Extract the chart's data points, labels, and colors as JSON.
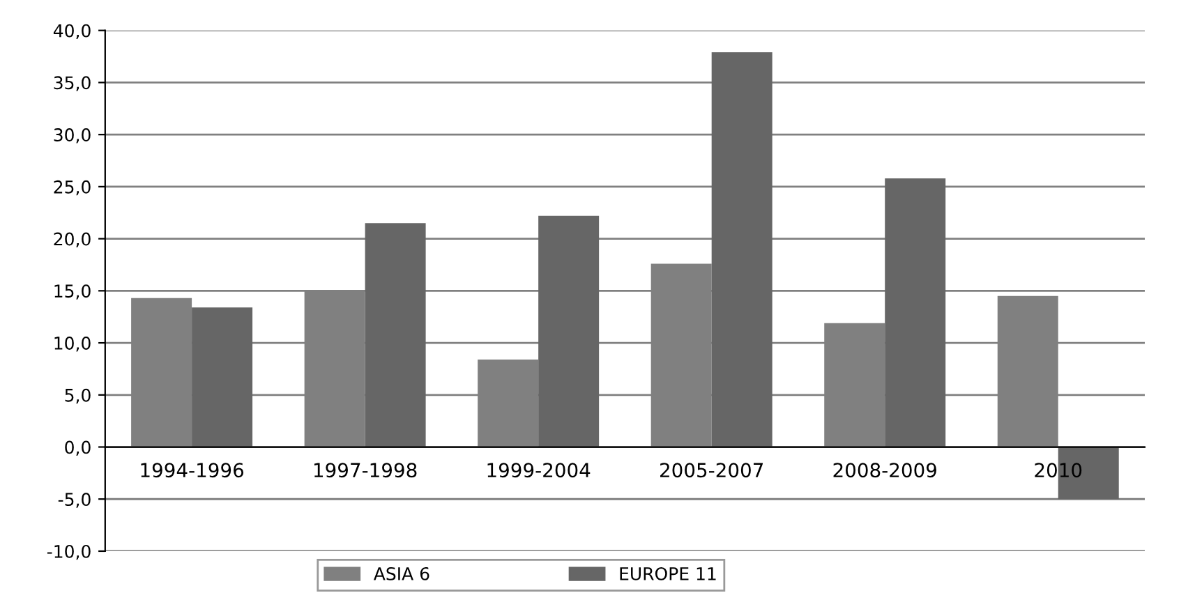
{
  "chart_data": {
    "type": "bar",
    "categories": [
      "1994-1996",
      "1997-1998",
      "1999-2004",
      "2005-2007",
      "2008-2009",
      "2010"
    ],
    "series": [
      {
        "name": "ASIA 6",
        "color": "#808080",
        "values": [
          14.3,
          15.0,
          8.4,
          17.6,
          11.9,
          14.5
        ]
      },
      {
        "name": "EUROPE 11",
        "color": "#666666",
        "values": [
          13.4,
          21.5,
          22.2,
          37.9,
          25.8,
          -5.0
        ]
      }
    ],
    "ylim": [
      -10,
      40
    ],
    "yticks": [
      {
        "value": -10,
        "label": "-10,0"
      },
      {
        "value": -5,
        "label": "-5,0"
      },
      {
        "value": 0,
        "label": "0,0"
      },
      {
        "value": 5,
        "label": "5,0"
      },
      {
        "value": 10,
        "label": "10,0"
      },
      {
        "value": 15,
        "label": "15,0"
      },
      {
        "value": 20,
        "label": "20,0"
      },
      {
        "value": 25,
        "label": "25,0"
      },
      {
        "value": 30,
        "label": "30,0"
      },
      {
        "value": 35,
        "label": "35,0"
      },
      {
        "value": 40,
        "label": "40,0"
      }
    ],
    "grid": "y",
    "legend": "bottom"
  }
}
